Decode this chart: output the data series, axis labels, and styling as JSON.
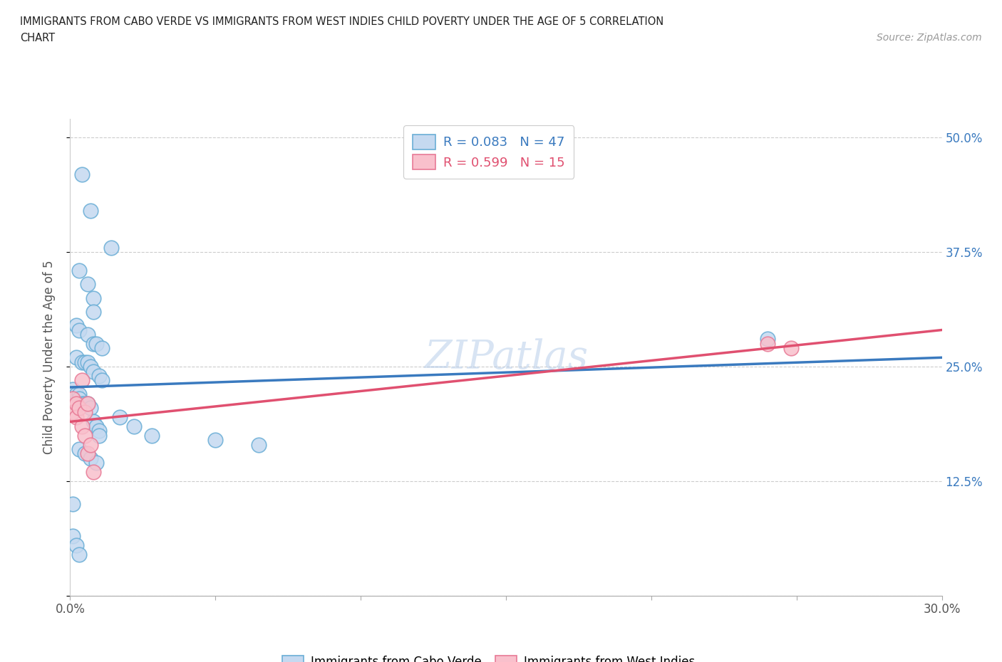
{
  "title_line1": "IMMIGRANTS FROM CABO VERDE VS IMMIGRANTS FROM WEST INDIES CHILD POVERTY UNDER THE AGE OF 5 CORRELATION",
  "title_line2": "CHART",
  "source": "Source: ZipAtlas.com",
  "ylabel": "Child Poverty Under the Age of 5",
  "legend_label1": "Immigrants from Cabo Verde",
  "legend_label2": "Immigrants from West Indies",
  "R1": 0.083,
  "N1": 47,
  "R2": 0.599,
  "N2": 15,
  "color1": "#c5d9f0",
  "color2": "#f9c0cc",
  "edge_color1": "#6aaed6",
  "edge_color2": "#e87a96",
  "line_color1": "#3a7abf",
  "line_color2": "#e05070",
  "watermark": "ZIPatlas",
  "xlim": [
    0.0,
    0.3
  ],
  "ylim": [
    0.0,
    0.52
  ],
  "cabo_verde_x": [
    0.004,
    0.007,
    0.014,
    0.003,
    0.006,
    0.008,
    0.008,
    0.002,
    0.003,
    0.006,
    0.008,
    0.009,
    0.011,
    0.002,
    0.004,
    0.005,
    0.006,
    0.007,
    0.008,
    0.01,
    0.011,
    0.001,
    0.002,
    0.003,
    0.003,
    0.004,
    0.005,
    0.006,
    0.007,
    0.008,
    0.009,
    0.01,
    0.01,
    0.003,
    0.005,
    0.007,
    0.009,
    0.017,
    0.022,
    0.028,
    0.24,
    0.05,
    0.065,
    0.001,
    0.001,
    0.002,
    0.003
  ],
  "cabo_verde_y": [
    0.46,
    0.42,
    0.38,
    0.355,
    0.34,
    0.325,
    0.31,
    0.295,
    0.29,
    0.285,
    0.275,
    0.275,
    0.27,
    0.26,
    0.255,
    0.255,
    0.255,
    0.25,
    0.245,
    0.24,
    0.235,
    0.225,
    0.22,
    0.22,
    0.215,
    0.21,
    0.21,
    0.21,
    0.205,
    0.19,
    0.185,
    0.18,
    0.175,
    0.16,
    0.155,
    0.15,
    0.145,
    0.195,
    0.185,
    0.175,
    0.28,
    0.17,
    0.165,
    0.1,
    0.065,
    0.055,
    0.045
  ],
  "west_indies_x": [
    0.001,
    0.001,
    0.002,
    0.002,
    0.003,
    0.004,
    0.004,
    0.005,
    0.005,
    0.006,
    0.006,
    0.007,
    0.008,
    0.24,
    0.248
  ],
  "west_indies_y": [
    0.215,
    0.2,
    0.21,
    0.195,
    0.205,
    0.235,
    0.185,
    0.2,
    0.175,
    0.21,
    0.155,
    0.165,
    0.135,
    0.275,
    0.27
  ]
}
